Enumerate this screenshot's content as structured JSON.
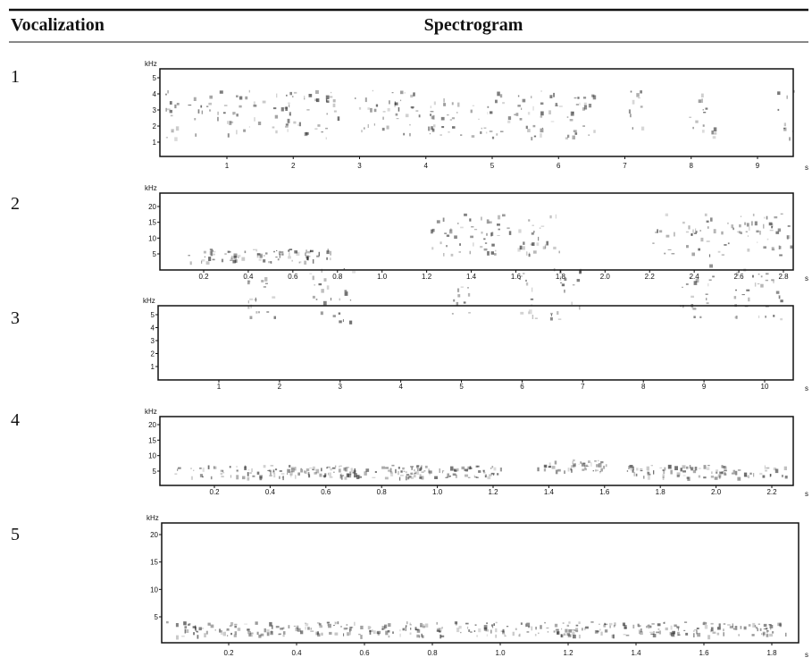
{
  "table": {
    "headers": [
      "Vocalization",
      "Spectrogram"
    ],
    "rows": [
      {
        "label": "1",
        "y_unit": "kHz",
        "y_ticks": [
          "1",
          "2",
          "3",
          "4",
          "5"
        ],
        "x_unit": "s",
        "x_ticks": [
          "1",
          "2",
          "3",
          "4",
          "5",
          "6",
          "7",
          "8",
          "9"
        ]
      },
      {
        "label": "2",
        "y_unit": "kHz",
        "y_ticks": [
          "5",
          "10",
          "15",
          "20"
        ],
        "x_unit": "s",
        "x_ticks": [
          "0.2",
          "0.4",
          "0.6",
          "0.8",
          "1.0",
          "1.2",
          "1.4",
          "1.6",
          "1.8",
          "2.0",
          "2.2",
          "2.4",
          "2.6",
          "2.8"
        ]
      },
      {
        "label": "3",
        "y_unit": "kHz",
        "y_ticks": [
          "1",
          "2",
          "3",
          "4",
          "5"
        ],
        "x_unit": "s",
        "x_ticks": [
          "1",
          "2",
          "3",
          "4",
          "5",
          "6",
          "7",
          "8",
          "9",
          "10"
        ]
      },
      {
        "label": "4",
        "y_unit": "kHz",
        "y_ticks": [
          "5",
          "10",
          "15",
          "20"
        ],
        "x_unit": "s",
        "x_ticks": [
          "0.2",
          "0.4",
          "0.6",
          "0.8",
          "1.0",
          "1.2",
          "1.4",
          "1.6",
          "1.8",
          "2.0",
          "2.2"
        ]
      },
      {
        "label": "5",
        "y_unit": "kHz",
        "y_ticks": [
          "5",
          "10",
          "15",
          "20"
        ],
        "x_unit": "s",
        "x_ticks": [
          "0.2",
          "0.4",
          "0.6",
          "0.8",
          "1.0",
          "1.2",
          "1.4",
          "1.6",
          "1.8"
        ]
      }
    ]
  }
}
